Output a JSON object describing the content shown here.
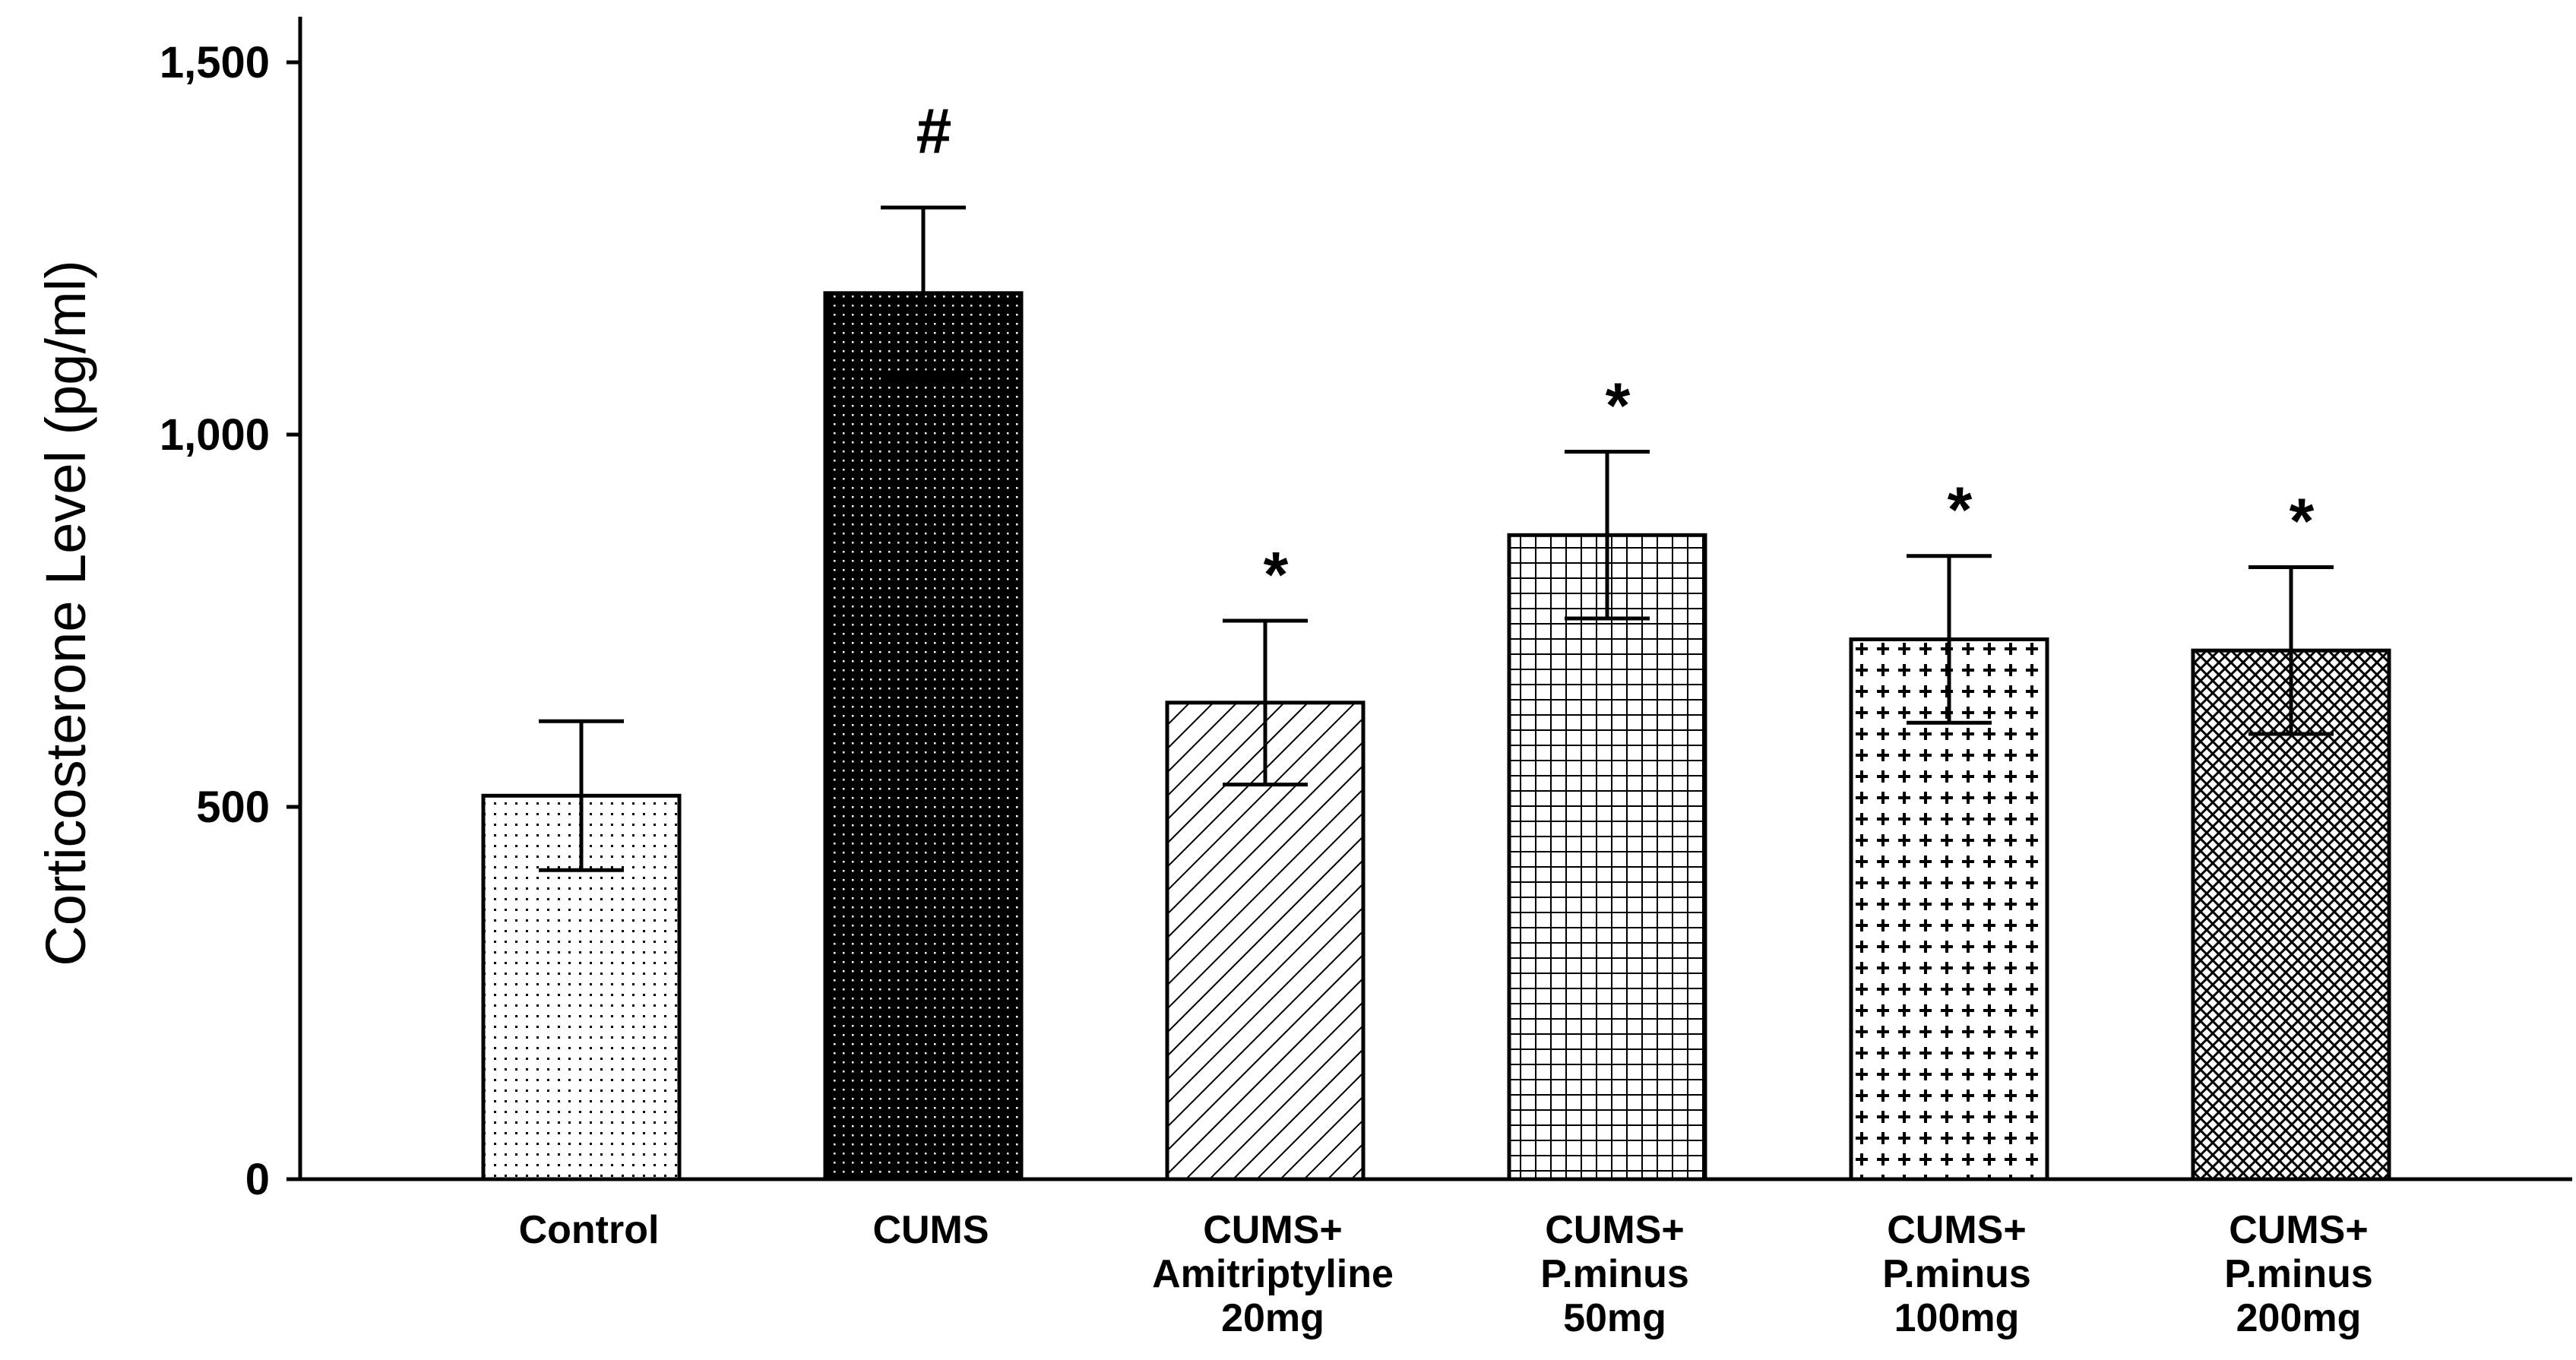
{
  "chart_data": {
    "type": "bar",
    "title": "",
    "xlabel": "",
    "ylabel": "Corticosterone Level (pg/ml)",
    "ylim": [
      0,
      1500
    ],
    "yticks": [
      0,
      500,
      1000,
      1500
    ],
    "ytick_labels": [
      "0",
      "500",
      "1,000",
      "1,500"
    ],
    "grid": false,
    "legend": "none",
    "categories": [
      [
        "Control"
      ],
      [
        "CUMS"
      ],
      [
        "CUMS+",
        "Amitriptyline",
        "20mg"
      ],
      [
        "CUMS+",
        "P.minus",
        "50mg"
      ],
      [
        "CUMS+",
        "P.minus",
        "100mg"
      ],
      [
        "CUMS+",
        "P.minus",
        "200mg"
      ]
    ],
    "values": [
      515,
      1190,
      640,
      865,
      725,
      710
    ],
    "errors": [
      100,
      115,
      110,
      112,
      112,
      112
    ],
    "annotations": [
      "",
      "#",
      "*",
      "*",
      "*",
      "*"
    ],
    "patterns": [
      "sparse-dots",
      "dense-dots-on-black",
      "diagonal-lines",
      "square-grid",
      "crosses",
      "crosshatch"
    ]
  }
}
